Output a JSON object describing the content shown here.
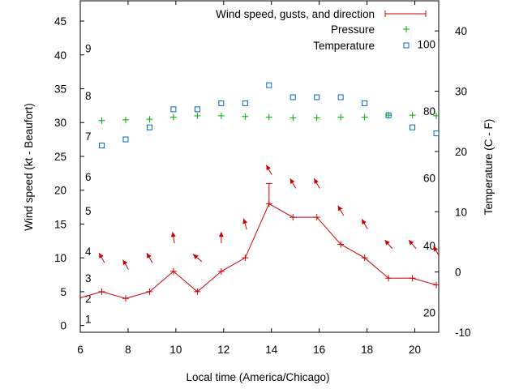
{
  "chart_data": {
    "type": "line",
    "xlabel": "Local time (America/Chicago)",
    "ylabel_left": "Wind speed (kt - Beaufort)",
    "ylabel_right": "Temperature (C - F)",
    "xlim": [
      6,
      21
    ],
    "ylim_left": [
      -1,
      48
    ],
    "ylim_right": [
      -10,
      45
    ],
    "x_ticks": [
      "6",
      "8",
      "10",
      "12",
      "14",
      "16",
      "18",
      "20"
    ],
    "y_left_ticks": [
      "0",
      "5",
      "10",
      "15",
      "20",
      "25",
      "30",
      "35",
      "40",
      "45"
    ],
    "y_right_ticks": [
      "-10",
      "0",
      "10",
      "20",
      "30",
      "40"
    ],
    "beaufort_labels": [
      {
        "label": "1",
        "kt": 1
      },
      {
        "label": "2",
        "kt": 4
      },
      {
        "label": "3",
        "kt": 7
      },
      {
        "label": "4",
        "kt": 11
      },
      {
        "label": "5",
        "kt": 17
      },
      {
        "label": "6",
        "kt": 22
      },
      {
        "label": "7",
        "kt": 28
      },
      {
        "label": "8",
        "kt": 34
      },
      {
        "label": "9",
        "kt": 41
      }
    ],
    "fahrenheit_labels": [
      {
        "label": "20",
        "c": -6.7
      },
      {
        "label": "40",
        "c": 4.4
      },
      {
        "label": "60",
        "c": 15.6
      },
      {
        "label": "80",
        "c": 26.7
      },
      {
        "label": "100",
        "c": 37.8
      }
    ],
    "legend": {
      "position": "top-right",
      "entries": [
        "Wind speed, gusts, and direction",
        "Pressure",
        "Temperature"
      ]
    },
    "colors": {
      "wind": "#cc0000",
      "pressure": "#00aa00",
      "temperature": "#0066cc"
    },
    "series": [
      {
        "name": "Wind speed, gusts, and direction",
        "x": [
          5.9,
          6.9,
          7.9,
          8.9,
          9.9,
          10.9,
          11.9,
          12.9,
          13.9,
          14.9,
          15.9,
          16.9,
          17.9,
          18.9,
          19.9,
          20.9
        ],
        "values": [
          4,
          5,
          4,
          5,
          8,
          5,
          8,
          10,
          18,
          16,
          16,
          12,
          10,
          7,
          7,
          6
        ],
        "gusts": [
          null,
          null,
          null,
          null,
          null,
          null,
          null,
          null,
          21,
          null,
          null,
          null,
          null,
          null,
          null,
          null
        ],
        "direction_deg": [
          150,
          150,
          150,
          150,
          170,
          130,
          180,
          165,
          150,
          150,
          150,
          150,
          150,
          140,
          140,
          150
        ]
      },
      {
        "name": "Pressure",
        "x": [
          6.9,
          7.9,
          8.9,
          9.9,
          10.9,
          11.9,
          12.9,
          13.9,
          14.9,
          15.9,
          16.9,
          17.9,
          18.9,
          19.9,
          20.9
        ],
        "values": [
          30.3,
          30.4,
          30.5,
          30.8,
          31.0,
          31.0,
          30.9,
          30.8,
          30.7,
          30.7,
          30.8,
          30.8,
          31.1,
          31.1,
          31.0
        ]
      },
      {
        "name": "Temperature",
        "x": [
          6.9,
          7.9,
          8.9,
          9.9,
          10.9,
          11.9,
          12.9,
          13.9,
          14.9,
          15.9,
          16.9,
          17.9,
          18.9,
          19.9,
          20.9
        ],
        "values": [
          21,
          22,
          24,
          27,
          27,
          28,
          28,
          31,
          29,
          29,
          29,
          28,
          26,
          24,
          23
        ]
      }
    ]
  }
}
